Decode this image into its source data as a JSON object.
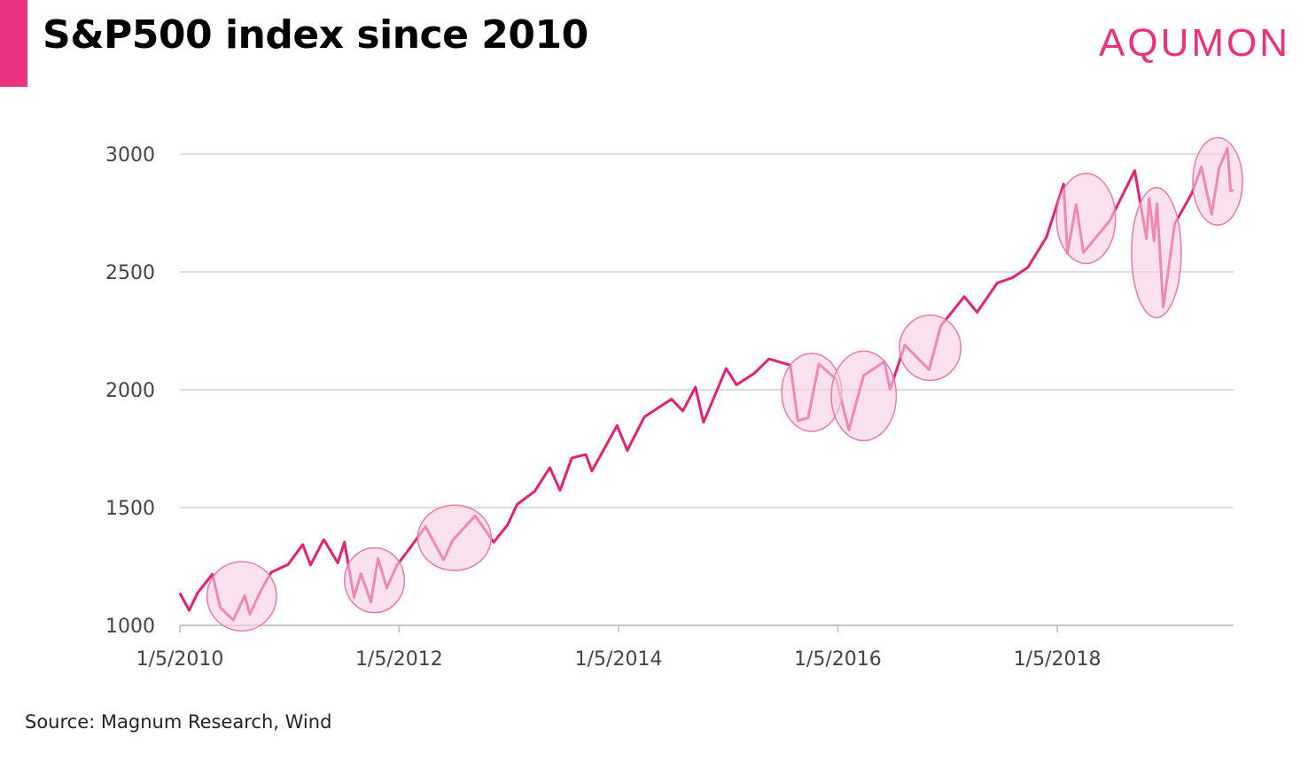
{
  "header": {
    "title": "S&P500 index since 2010",
    "brand": "AQUMON"
  },
  "footer": {
    "source": "Source: Magnum Research, Wind"
  },
  "colors": {
    "accent": "#e9327d",
    "line": "#e51f74",
    "highlight_fill": "#f5cfe1",
    "highlight_stroke": "#e978ad",
    "grid": "#d2d2d2"
  },
  "chart_data": {
    "type": "line",
    "title": "S&P500 index since 2010",
    "xlabel": "",
    "ylabel": "",
    "x_ticks": [
      "1/5/2010",
      "1/5/2012",
      "1/5/2014",
      "1/5/2016",
      "1/5/2018"
    ],
    "y_ticks": [
      1000,
      1500,
      2000,
      2500,
      3000
    ],
    "xlim": [
      "2010-01-05",
      "2019-08-15"
    ],
    "ylim": [
      1000,
      3000
    ],
    "grid": "horizontal",
    "series": [
      {
        "x": [
          "2010-01-05",
          "2010-02-05",
          "2010-03-05",
          "2010-04-23",
          "2010-05-20",
          "2010-07-02",
          "2010-08-09",
          "2010-08-26",
          "2010-10-01",
          "2010-11-05",
          "2010-12-31",
          "2011-02-18",
          "2011-03-16",
          "2011-04-29",
          "2011-06-15",
          "2011-07-07",
          "2011-08-08",
          "2011-08-31",
          "2011-10-03",
          "2011-10-27",
          "2011-11-25",
          "2011-12-30",
          "2012-02-01",
          "2012-04-02",
          "2012-06-01",
          "2012-07-02",
          "2012-09-14",
          "2012-11-15",
          "2012-12-31",
          "2013-02-01",
          "2013-04-01",
          "2013-05-21",
          "2013-06-24",
          "2013-08-02",
          "2013-09-18",
          "2013-10-08",
          "2013-12-31",
          "2014-02-03",
          "2014-04-01",
          "2014-06-30",
          "2014-08-07",
          "2014-09-18",
          "2014-10-15",
          "2014-12-29",
          "2015-02-02",
          "2015-03-31",
          "2015-05-21",
          "2015-07-31",
          "2015-08-25",
          "2015-09-28",
          "2015-11-03",
          "2015-12-31",
          "2016-02-11",
          "2016-03-31",
          "2016-06-08",
          "2016-06-27",
          "2016-08-15",
          "2016-11-04",
          "2016-12-13",
          "2017-03-01",
          "2017-04-13",
          "2017-06-19",
          "2017-08-08",
          "2017-09-29",
          "2017-11-30",
          "2018-01-26",
          "2018-02-08",
          "2018-03-09",
          "2018-04-02",
          "2018-06-29",
          "2018-09-20",
          "2018-10-29",
          "2018-11-07",
          "2018-11-23",
          "2018-12-03",
          "2018-12-24",
          "2019-01-31",
          "2019-03-29",
          "2019-04-30",
          "2019-06-03",
          "2019-06-28",
          "2019-07-26",
          "2019-08-05",
          "2019-08-15"
        ],
        "values": [
          1137,
          1064,
          1138,
          1217,
          1075,
          1022,
          1127,
          1047,
          1146,
          1225,
          1258,
          1343,
          1256,
          1364,
          1265,
          1353,
          1119,
          1219,
          1099,
          1284,
          1159,
          1258,
          1312,
          1419,
          1278,
          1362,
          1465,
          1353,
          1426,
          1513,
          1569,
          1669,
          1573,
          1710,
          1725,
          1655,
          1848,
          1742,
          1885,
          1960,
          1910,
          2011,
          1862,
          2090,
          2021,
          2068,
          2131,
          2104,
          1868,
          1881,
          2109,
          2044,
          1829,
          2060,
          2119,
          2001,
          2190,
          2085,
          2271,
          2395,
          2329,
          2453,
          2475,
          2519,
          2648,
          2873,
          2581,
          2786,
          2582,
          2718,
          2930,
          2641,
          2813,
          2633,
          2790,
          2351,
          2704,
          2834,
          2945,
          2744,
          2942,
          3025,
          2844,
          2847
        ]
      }
    ],
    "highlights": [
      {
        "from": "2010-04-23",
        "to": "2010-11-05"
      },
      {
        "from": "2011-07-25",
        "to": "2012-01-05"
      },
      {
        "from": "2012-03-25",
        "to": "2012-10-20"
      },
      {
        "from": "2015-07-20",
        "to": "2015-12-31"
      },
      {
        "from": "2016-01-01",
        "to": "2016-06-30"
      },
      {
        "from": "2016-08-15",
        "to": "2017-01-31"
      },
      {
        "from": "2018-01-20",
        "to": "2018-06-30"
      },
      {
        "from": "2018-10-01",
        "to": "2019-01-31"
      },
      {
        "from": "2019-05-01",
        "to": "2019-08-15"
      }
    ]
  }
}
